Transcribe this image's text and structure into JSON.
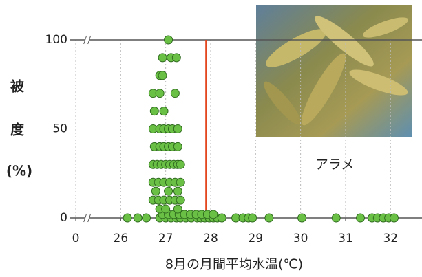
{
  "chart_data": {
    "type": "scatter",
    "ylabel": [
      "被",
      "度",
      "(%)"
    ],
    "xlabel": "8月の月間平均水温(℃)",
    "annotation": "アラメ",
    "x_break": [
      0,
      25
    ],
    "xlim": [
      25,
      32.7
    ],
    "ylim": [
      0,
      100
    ],
    "xticks": [
      0,
      26,
      27,
      28,
      29,
      30,
      31,
      32
    ],
    "yticks": [
      0,
      50,
      100
    ],
    "grid": true,
    "threshold_x": 27.9,
    "threshold_color": "#e2471f",
    "series": [
      {
        "color": "#6abf45",
        "x": [
          26.15,
          26.38,
          26.57,
          26.87,
          27.0,
          27.12,
          27.24,
          27.33,
          27.45,
          27.57,
          27.7,
          27.78,
          27.87,
          27.97,
          28.06,
          28.15,
          28.25,
          28.56,
          28.72,
          28.84,
          28.93,
          29.3,
          30.03,
          30.79,
          31.33,
          31.59,
          31.71,
          31.84,
          31.96,
          32.08,
          26.93,
          27.06,
          27.18,
          27.3,
          27.42,
          27.55,
          27.68,
          27.8,
          27.93,
          28.06,
          26.87,
          27.0,
          27.27,
          26.72,
          26.84,
          26.96,
          27.09,
          27.21,
          27.33,
          26.78,
          27.06,
          27.27,
          26.72,
          26.84,
          26.96,
          27.09,
          27.21,
          27.33,
          26.72,
          26.81,
          26.9,
          27.0,
          27.09,
          27.18,
          27.27,
          27.33,
          26.75,
          26.87,
          26.96,
          27.06,
          27.15,
          27.27,
          26.72,
          26.87,
          26.96,
          27.06,
          27.15,
          27.27,
          26.75,
          26.96,
          26.72,
          26.87,
          27.21,
          26.87,
          26.93,
          26.93,
          27.12,
          27.24,
          27.06
        ],
        "values": [
          0,
          0,
          0,
          0,
          0,
          0,
          0,
          0,
          0,
          0,
          0,
          0,
          0,
          0,
          0,
          0,
          0,
          0,
          0,
          0,
          0,
          0,
          0,
          0,
          0,
          0,
          0,
          0,
          0,
          0,
          2,
          2,
          2,
          2,
          2,
          2,
          2,
          2,
          2,
          2,
          5,
          5,
          5,
          10,
          10,
          10,
          10,
          10,
          10,
          15,
          15,
          15,
          20,
          20,
          20,
          20,
          20,
          20,
          30,
          30,
          30,
          30,
          30,
          30,
          30,
          30,
          40,
          40,
          40,
          40,
          40,
          40,
          50,
          50,
          50,
          50,
          50,
          50,
          60,
          60,
          70,
          70,
          70,
          80,
          80,
          90,
          90,
          90,
          100
        ]
      }
    ]
  }
}
